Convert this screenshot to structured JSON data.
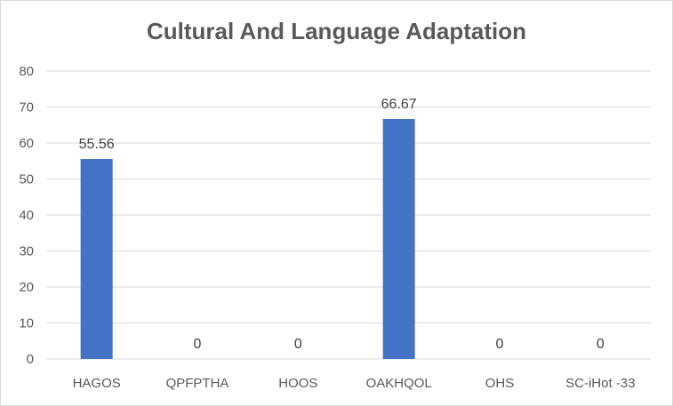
{
  "chart_data": {
    "type": "bar",
    "title": "Cultural And Language Adaptation",
    "xlabel": "",
    "ylabel": "",
    "categories": [
      "HAGOS",
      "QPFPTHA",
      "HOOS",
      "OAKHQOL",
      "OHS",
      "SC-iHot -33"
    ],
    "values": [
      55.56,
      0,
      0,
      66.67,
      0,
      0
    ],
    "data_labels": [
      "55.56",
      "0",
      "0",
      "66.67",
      "0",
      "0"
    ],
    "ylim": [
      0,
      80
    ],
    "yticks": [
      0,
      10,
      20,
      30,
      40,
      50,
      60,
      70,
      80
    ],
    "grid": true,
    "legend": "none",
    "bar_color": "#4472c4",
    "grid_color": "#d9d9d9"
  }
}
